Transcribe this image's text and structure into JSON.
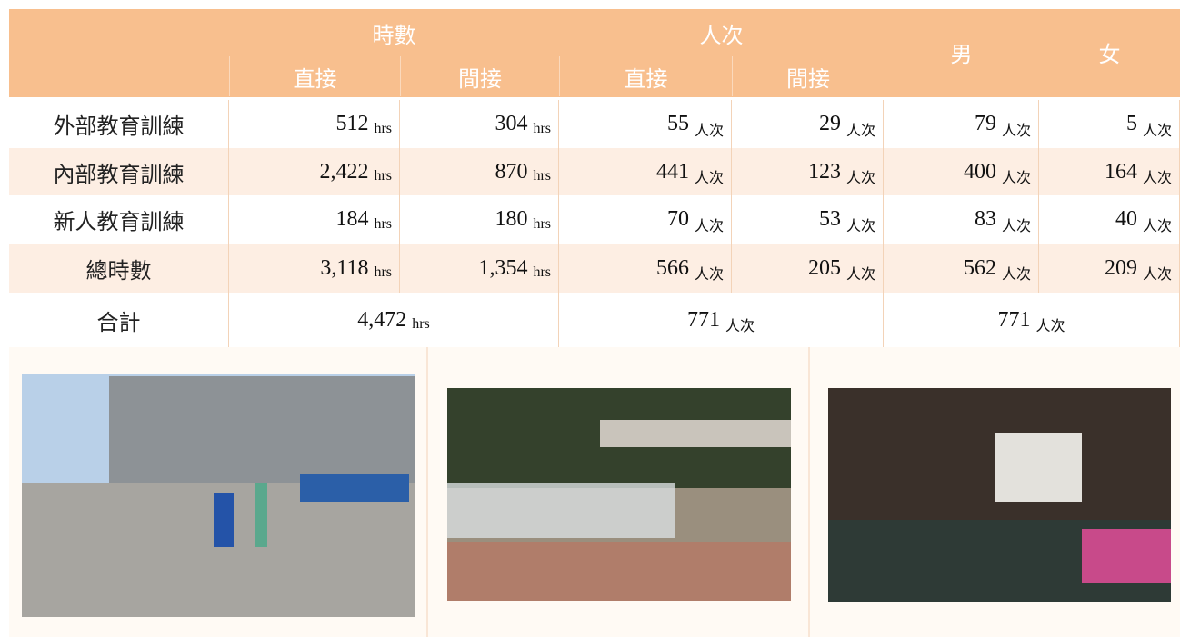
{
  "table": {
    "header": {
      "groups": [
        "時數",
        "人次",
        "男",
        "女"
      ],
      "subs": [
        "直接",
        "間接",
        "直接",
        "間接"
      ]
    },
    "rows": [
      {
        "label": "外部教育訓練",
        "cells": [
          {
            "n": "512",
            "u": "hrs"
          },
          {
            "n": "304",
            "u": "hrs"
          },
          {
            "n": "55",
            "u": "人次"
          },
          {
            "n": "29",
            "u": "人次"
          },
          {
            "n": "79",
            "u": "人次"
          },
          {
            "n": "5",
            "u": "人次"
          }
        ]
      },
      {
        "label": "內部教育訓練",
        "cells": [
          {
            "n": "2,422",
            "u": "hrs"
          },
          {
            "n": "870",
            "u": "hrs"
          },
          {
            "n": "441",
            "u": "人次"
          },
          {
            "n": "123",
            "u": "人次"
          },
          {
            "n": "400",
            "u": "人次"
          },
          {
            "n": "164",
            "u": "人次"
          }
        ]
      },
      {
        "label": "新人教育訓練",
        "cells": [
          {
            "n": "184",
            "u": "hrs"
          },
          {
            "n": "180",
            "u": "hrs"
          },
          {
            "n": "70",
            "u": "人次"
          },
          {
            "n": "53",
            "u": "人次"
          },
          {
            "n": "83",
            "u": "人次"
          },
          {
            "n": "40",
            "u": "人次"
          }
        ]
      },
      {
        "label": "總時數",
        "cells": [
          {
            "n": "3,118",
            "u": "hrs"
          },
          {
            "n": "1,354",
            "u": "hrs"
          },
          {
            "n": "566",
            "u": "人次"
          },
          {
            "n": "205",
            "u": "人次"
          },
          {
            "n": "562",
            "u": "人次"
          },
          {
            "n": "209",
            "u": "人次"
          }
        ]
      }
    ],
    "total": {
      "label": "合計",
      "cells": [
        {
          "n": "4,472",
          "u": "hrs"
        },
        {
          "n": "771",
          "u": "人次"
        },
        {
          "n": "771",
          "u": "人次"
        }
      ]
    }
  }
}
